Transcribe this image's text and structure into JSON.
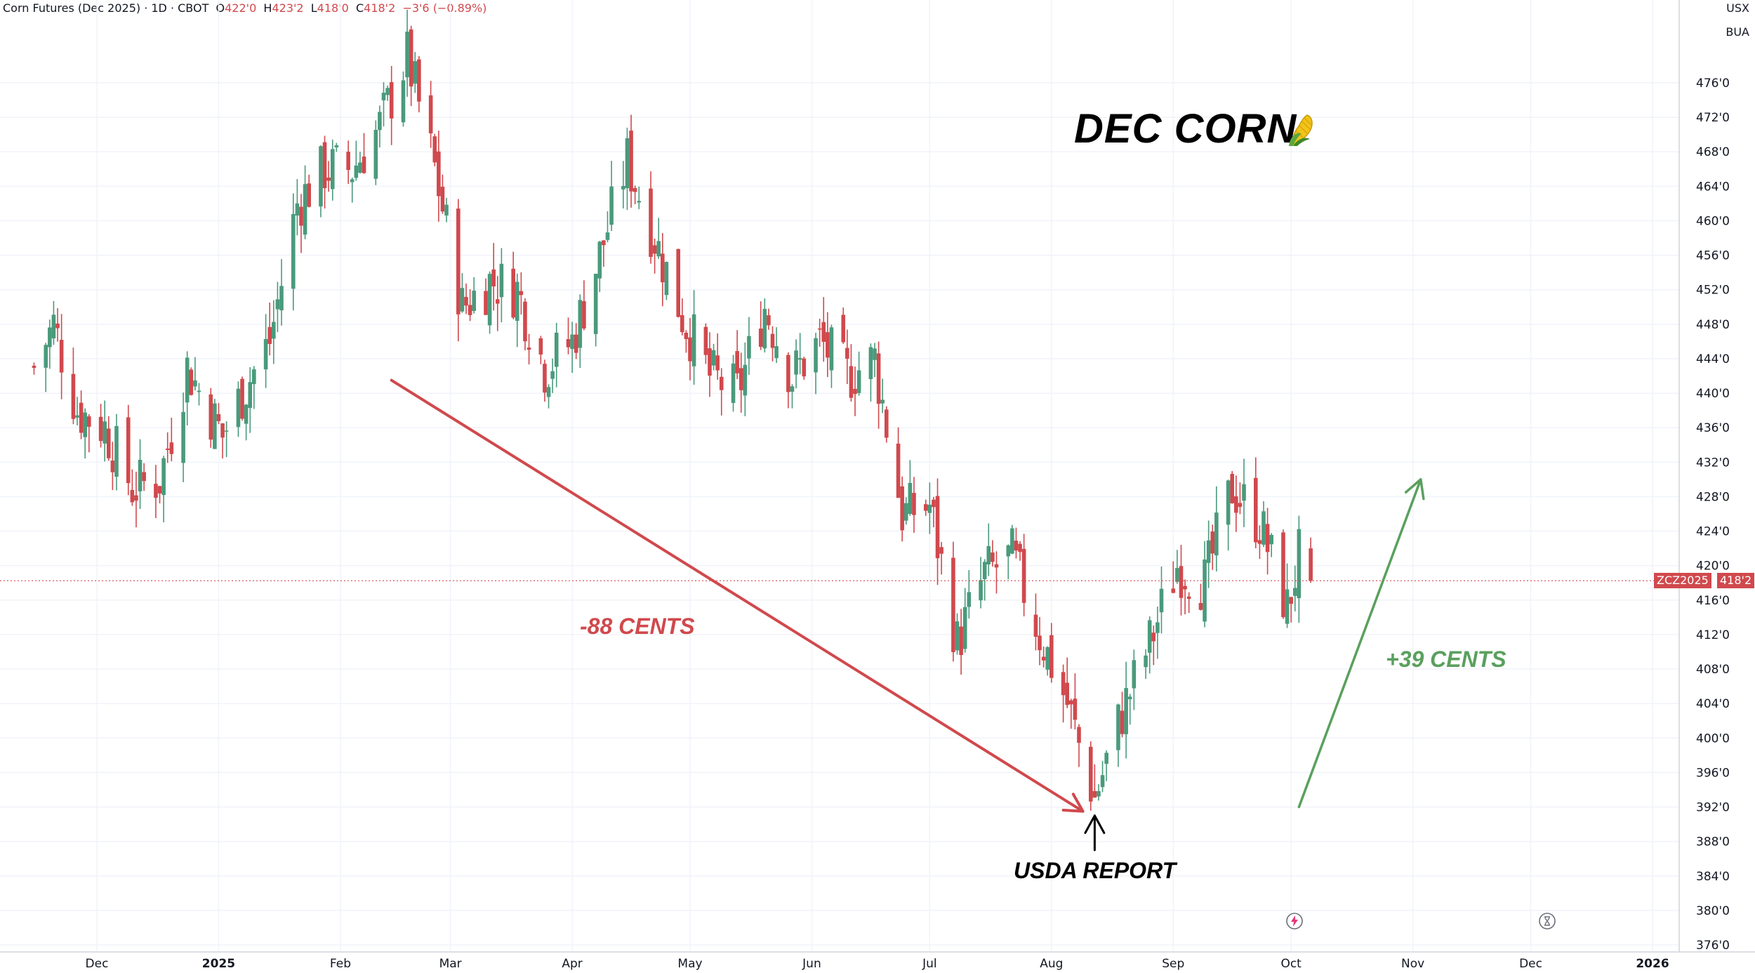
{
  "header": {
    "symbol_line": "Corn Futures (Dec 2025) · 1D · CBOT",
    "open_label": "O",
    "open": "422'0",
    "high_label": "H",
    "high": "423'2",
    "low_label": "L",
    "low": "418'0",
    "close_label": "C",
    "close": "418'2",
    "change": "−3'6 (−0.89%)"
  },
  "units": {
    "currency": "USX",
    "unit": "BUA"
  },
  "annotations": {
    "title": "DEC CORN",
    "title_icon": "corn-icon",
    "decline": "-88 CENTS",
    "rally": "+39 CENTS",
    "report": "USDA REPORT"
  },
  "price_tag": {
    "symbol": "ZCZ2025",
    "value": "418'2"
  },
  "colors": {
    "up": "#4a9a7c",
    "down": "#d0494d",
    "arrow_red": "#d0494d",
    "arrow_green": "#5aa05e",
    "grid": "#f0f3fa"
  },
  "chart_data": {
    "type": "candlestick",
    "title": "Corn Futures (Dec 2025)",
    "interval": "1D",
    "exchange": "CBOT",
    "price_format": "cents'eighths",
    "ylim": [
      374,
      481
    ],
    "y_ticks": [
      376,
      380,
      384,
      388,
      392,
      396,
      400,
      404,
      408,
      412,
      416,
      420,
      424,
      428,
      432,
      436,
      440,
      444,
      448,
      452,
      456,
      460,
      464,
      468,
      472,
      476
    ],
    "y_tick_labels": [
      "376'0",
      "380'0",
      "384'0",
      "388'0",
      "392'0",
      "396'0",
      "400'0",
      "404'0",
      "408'0",
      "412'0",
      "416'0",
      "420'0",
      "424'0",
      "428'0",
      "432'0",
      "436'0",
      "440'0",
      "444'0",
      "448'0",
      "452'0",
      "456'0",
      "460'0",
      "464'0",
      "468'0",
      "472'0",
      "476'0"
    ],
    "x_tick_labels": [
      "Dec",
      "2025",
      "Feb",
      "Mar",
      "Apr",
      "May",
      "Jun",
      "Jul",
      "Aug",
      "Sep",
      "Oct",
      "Nov",
      "Dec",
      "2026"
    ],
    "x_tick_dates": [
      "2024-12-01",
      "2025-01-01",
      "2025-02-01",
      "2025-03-01",
      "2025-04-01",
      "2025-05-01",
      "2025-06-01",
      "2025-07-01",
      "2025-08-01",
      "2025-09-01",
      "2025-10-01",
      "2025-11-01",
      "2025-12-01",
      "2026-01-01"
    ],
    "last_price": 418.25,
    "anchors": [
      {
        "date": "2024-11-15",
        "price": 443
      },
      {
        "date": "2024-11-20",
        "price": 448
      },
      {
        "date": "2024-11-26",
        "price": 438
      },
      {
        "date": "2024-12-03",
        "price": 436
      },
      {
        "date": "2024-12-10",
        "price": 429
      },
      {
        "date": "2024-12-17",
        "price": 430
      },
      {
        "date": "2024-12-24",
        "price": 443
      },
      {
        "date": "2025-01-02",
        "price": 435
      },
      {
        "date": "2025-01-07",
        "price": 440
      },
      {
        "date": "2025-01-14",
        "price": 446
      },
      {
        "date": "2025-01-21",
        "price": 462
      },
      {
        "date": "2025-01-28",
        "price": 466
      },
      {
        "date": "2025-02-04",
        "price": 466
      },
      {
        "date": "2025-02-11",
        "price": 471
      },
      {
        "date": "2025-02-18",
        "price": 479
      },
      {
        "date": "2025-02-25",
        "price": 466
      },
      {
        "date": "2025-03-04",
        "price": 450
      },
      {
        "date": "2025-03-11",
        "price": 453
      },
      {
        "date": "2025-03-18",
        "price": 452
      },
      {
        "date": "2025-03-25",
        "price": 443
      },
      {
        "date": "2025-04-01",
        "price": 446
      },
      {
        "date": "2025-04-08",
        "price": 456
      },
      {
        "date": "2025-04-15",
        "price": 467
      },
      {
        "date": "2025-04-22",
        "price": 458
      },
      {
        "date": "2025-04-29",
        "price": 449
      },
      {
        "date": "2025-05-06",
        "price": 442
      },
      {
        "date": "2025-05-13",
        "price": 440
      },
      {
        "date": "2025-05-20",
        "price": 450
      },
      {
        "date": "2025-05-27",
        "price": 442
      },
      {
        "date": "2025-06-03",
        "price": 446
      },
      {
        "date": "2025-06-10",
        "price": 442
      },
      {
        "date": "2025-06-17",
        "price": 444
      },
      {
        "date": "2025-06-24",
        "price": 426
      },
      {
        "date": "2025-07-01",
        "price": 427
      },
      {
        "date": "2025-07-08",
        "price": 411
      },
      {
        "date": "2025-07-15",
        "price": 419
      },
      {
        "date": "2025-07-22",
        "price": 421
      },
      {
        "date": "2025-07-29",
        "price": 412
      },
      {
        "date": "2025-08-05",
        "price": 404
      },
      {
        "date": "2025-08-12",
        "price": 393
      },
      {
        "date": "2025-08-19",
        "price": 403
      },
      {
        "date": "2025-08-26",
        "price": 411
      },
      {
        "date": "2025-09-02",
        "price": 420
      },
      {
        "date": "2025-09-09",
        "price": 418
      },
      {
        "date": "2025-09-16",
        "price": 429
      },
      {
        "date": "2025-09-23",
        "price": 425
      },
      {
        "date": "2025-09-30",
        "price": 415
      },
      {
        "date": "2025-10-03",
        "price": 421
      },
      {
        "date": "2025-10-06",
        "price": 418.25
      }
    ],
    "arrows": [
      {
        "label": "-88 CENTS",
        "from": {
          "date": "2025-02-14",
          "price": 441.5
        },
        "to": {
          "date": "2025-08-09",
          "price": 391.5
        }
      },
      {
        "label": "+39 CENTS",
        "from": {
          "date": "2025-10-03",
          "price": 392
        },
        "to": {
          "date": "2025-11-03",
          "price": 430
        }
      },
      {
        "label": "USDA REPORT",
        "from": {
          "date": "2025-08-12",
          "price": 387
        },
        "to": {
          "date": "2025-08-12",
          "price": 391
        }
      }
    ]
  }
}
